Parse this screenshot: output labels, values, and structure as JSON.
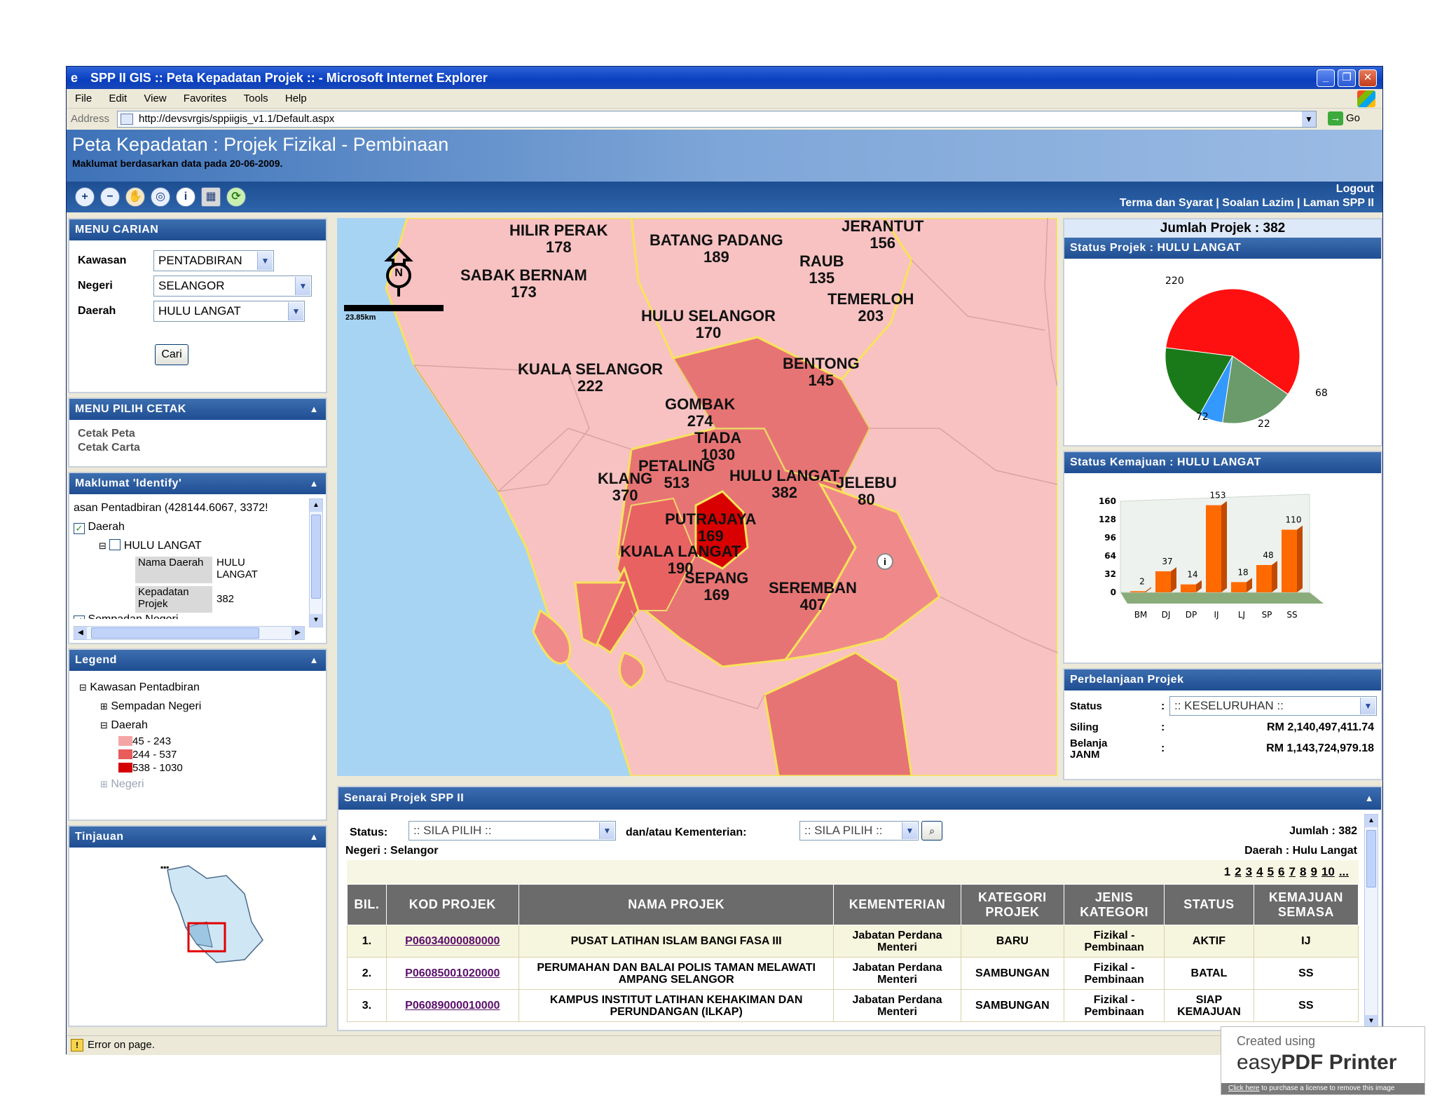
{
  "window": {
    "title": "SPP II GIS :: Peta Kepadatan Projek :: - Microsoft Internet Explorer",
    "menu": [
      "File",
      "Edit",
      "View",
      "Favorites",
      "Tools",
      "Help"
    ],
    "address_label": "Address",
    "url": "http://devsvrgis/sppiigis_v1.1/Default.aspx",
    "go_label": "Go",
    "status_text": "Error on page."
  },
  "header": {
    "title": "Peta Kepadatan : Projek Fizikal - Pembinaan",
    "subtitle": "Maklumat berdasarkan data pada 20-06-2009.",
    "logout": "Logout",
    "links": "Terma dan Syarat | Soalan Lazim | Laman SPP II"
  },
  "menu_carian": {
    "title": "MENU CARIAN",
    "kawasan_label": "Kawasan",
    "kawasan_value": "PENTADBIRAN",
    "negeri_label": "Negeri",
    "negeri_value": "SELANGOR",
    "daerah_label": "Daerah",
    "daerah_value": "HULU LANGAT",
    "cari_button": "Cari"
  },
  "menu_cetak": {
    "title": "MENU PILIH CETAK",
    "items": [
      "Cetak Peta",
      "Cetak Carta"
    ]
  },
  "identify": {
    "title": "Maklumat 'Identify'",
    "line1": "asan Pentadbiran (428144.6067, 3372!",
    "daerah": "Daerah",
    "hulu_langat": "HULU LANGAT",
    "nama_label": "Nama Daerah",
    "nama_value": "HULU LANGAT",
    "kepadatan_label": "Kepadatan Projek",
    "kepadatan_value": "382",
    "cut": "Sempadan Negeri"
  },
  "legend": {
    "title": "Legend",
    "kawasan": "Kawasan Pentadbiran",
    "sempadan": "Sempadan Negeri",
    "daerah": "Daerah",
    "ranges": [
      {
        "label": "45 - 243",
        "color": "#f4a6a6"
      },
      {
        "label": "244 - 537",
        "color": "#e85c5c"
      },
      {
        "label": "538 - 1030",
        "color": "#d40000"
      }
    ],
    "negeri": "Negeri"
  },
  "tinjauan": {
    "title": "Tinjauan"
  },
  "map": {
    "scale": "23.85km",
    "north": "N",
    "districts": [
      {
        "name": "HILIR PERAK",
        "value": "178"
      },
      {
        "name": "BATANG PADANG",
        "value": "189"
      },
      {
        "name": "JERANTUT",
        "value": "156"
      },
      {
        "name": "RAUB",
        "value": "135"
      },
      {
        "name": "SABAK BERNAM",
        "value": "173"
      },
      {
        "name": "TEMERLOH",
        "value": "203"
      },
      {
        "name": "HULU SELANGOR",
        "value": "170"
      },
      {
        "name": "BENTONG",
        "value": "145"
      },
      {
        "name": "KUALA SELANGOR",
        "value": "222"
      },
      {
        "name": "GOMBAK",
        "value": "274"
      },
      {
        "name": "TIADA",
        "value": "1030"
      },
      {
        "name": "PETALING",
        "value": "513"
      },
      {
        "name": "KLANG",
        "value": "370"
      },
      {
        "name": "HULU LANGAT",
        "value": "382"
      },
      {
        "name": "JELEBU",
        "value": "80"
      },
      {
        "name": "PUTRAJAYA",
        "value": "169"
      },
      {
        "name": "KUALA LANGAT",
        "value": "190"
      },
      {
        "name": "SEPANG",
        "value": "169"
      },
      {
        "name": "SEREMBAN",
        "value": "407"
      }
    ]
  },
  "right": {
    "jumlah": "Jumlah Projek : 382",
    "status_title": "Status Projek : HULU LANGAT",
    "kemajuan_title": "Status Kemajuan : HULU LANGAT",
    "belanja_title": "Perbelanjaan Projek",
    "status_label": "Status",
    "status_value": ":: KESELURUHAN ::",
    "siling_label": "Siling",
    "siling_value": "RM 2,140,497,411.74",
    "belanja_label": "Belanja JANM",
    "belanja_value": "RM 1,143,724,979.18",
    "colon": ":"
  },
  "chart_data": [
    {
      "type": "pie",
      "categories": [
        "",
        "",
        "",
        ""
      ],
      "values": [
        220,
        68,
        22,
        72
      ],
      "colors": [
        "#ff1010",
        "#6b9b6b",
        "#3399ff",
        "#1a7a1a"
      ],
      "labels": [
        "220",
        "68",
        "22",
        "72"
      ]
    },
    {
      "type": "bar",
      "categories": [
        "BM",
        "DJ",
        "DP",
        "IJ",
        "LJ",
        "SP",
        "SS"
      ],
      "values": [
        2,
        37,
        14,
        153,
        18,
        48,
        110
      ],
      "ylim": [
        0,
        160
      ],
      "yticks": [
        0,
        32,
        64,
        96,
        128,
        160
      ],
      "color": "#ff6a00"
    }
  ],
  "senarai": {
    "title": "Senarai Projek SPP II",
    "status_label": "Status:",
    "status_value": ":: SILA PILIH ::",
    "kementerian_label": "dan/atau Kementerian:",
    "kementerian_value": ":: SILA PILIH ::",
    "jumlah": "Jumlah : 382",
    "negeri": "Negeri : Selangor",
    "daerah": "Daerah : Hulu Langat",
    "pages": [
      "1",
      "2",
      "3",
      "4",
      "5",
      "6",
      "7",
      "8",
      "9",
      "10",
      "..."
    ],
    "columns": [
      "BIL.",
      "KOD PROJEK",
      "NAMA PROJEK",
      "KEMENTERIAN",
      "KATEGORI PROJEK",
      "JENIS KATEGORI",
      "STATUS",
      "KEMAJUAN SEMASA"
    ],
    "rows": [
      {
        "bil": "1.",
        "kod": "P06034000080000",
        "nama": "PUSAT LATIHAN ISLAM BANGI FASA III",
        "kementerian": "Jabatan Perdana Menteri",
        "kategori": "BARU",
        "jenis": "Fizikal - Pembinaan",
        "status": "AKTIF",
        "kemajuan": "IJ"
      },
      {
        "bil": "2.",
        "kod": "P06085001020000",
        "nama": "PERUMAHAN DAN BALAI POLIS TAMAN MELAWATI AMPANG SELANGOR",
        "kementerian": "Jabatan Perdana Menteri",
        "kategori": "SAMBUNGAN",
        "jenis": "Fizikal - Pembinaan",
        "status": "BATAL",
        "kemajuan": "SS"
      },
      {
        "bil": "3.",
        "kod": "P06089000010000",
        "nama": "KAMPUS INSTITUT LATIHAN KEHAKIMAN DAN PERUNDANGAN (ILKAP)",
        "kementerian": "Jabatan Perdana Menteri",
        "kategori": "SAMBUNGAN",
        "jenis": "Fizikal - Pembinaan",
        "status": "SIAP KEMAJUAN",
        "kemajuan": "SS"
      }
    ]
  },
  "watermark": {
    "created": "Created using",
    "brand_a": "easy",
    "brand_b": "PDF Printer",
    "click": "Click here",
    "rest": " to purchase a license to remove this image"
  }
}
